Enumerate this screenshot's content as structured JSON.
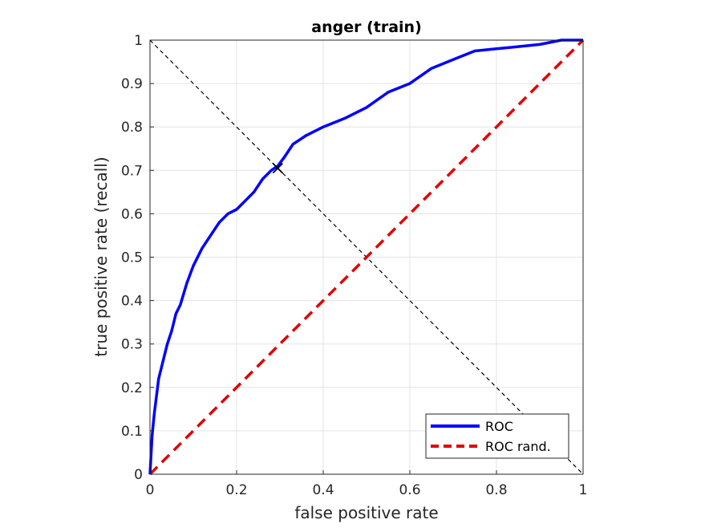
{
  "chart_data": {
    "type": "line",
    "title": "anger (train)",
    "xlabel": "false positive rate",
    "ylabel": "true positive rate (recall)",
    "xlim": [
      0,
      1
    ],
    "ylim": [
      0,
      1
    ],
    "grid": true,
    "x_ticks": [
      "0",
      "0.2",
      "0.4",
      "0.6",
      "0.8",
      "1"
    ],
    "y_ticks": [
      "0",
      "0.1",
      "0.2",
      "0.3",
      "0.4",
      "0.5",
      "0.6",
      "0.7",
      "0.8",
      "0.9",
      "1"
    ],
    "legend_position": "bottom-right",
    "series": [
      {
        "name": "ROC",
        "color": "#0000ff",
        "style": "solid",
        "x": [
          0,
          0.005,
          0.01,
          0.015,
          0.02,
          0.03,
          0.04,
          0.05,
          0.06,
          0.07,
          0.085,
          0.1,
          0.12,
          0.14,
          0.16,
          0.18,
          0.2,
          0.22,
          0.24,
          0.26,
          0.28,
          0.295,
          0.31,
          0.33,
          0.36,
          0.4,
          0.45,
          0.5,
          0.55,
          0.6,
          0.65,
          0.7,
          0.75,
          0.8,
          0.85,
          0.9,
          0.95,
          1.0
        ],
        "y": [
          0,
          0.09,
          0.14,
          0.18,
          0.22,
          0.26,
          0.3,
          0.33,
          0.37,
          0.39,
          0.44,
          0.48,
          0.52,
          0.55,
          0.58,
          0.6,
          0.61,
          0.63,
          0.65,
          0.68,
          0.7,
          0.71,
          0.73,
          0.76,
          0.78,
          0.8,
          0.82,
          0.845,
          0.88,
          0.9,
          0.935,
          0.955,
          0.975,
          0.98,
          0.985,
          0.99,
          1.0,
          1.0
        ]
      },
      {
        "name": "ROC rand.",
        "color": "#e00000",
        "style": "dashed",
        "x": [
          0,
          1
        ],
        "y": [
          0,
          1
        ]
      }
    ],
    "reference_line": {
      "x": [
        0,
        1
      ],
      "y": [
        1,
        0
      ],
      "color": "#000000",
      "style": "dashed"
    },
    "marker": {
      "x": 0.295,
      "y": 0.705,
      "symbol": "x",
      "color": "#000000"
    }
  }
}
